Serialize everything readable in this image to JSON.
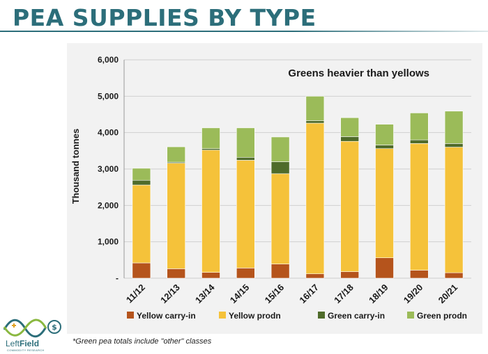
{
  "slide": {
    "title": "PEA SUPPLIES BY TYPE",
    "footnote": "*Green pea totals include \"other\" classes"
  },
  "logo": {
    "text_left": "Left",
    "text_right": "Field",
    "subtitle": "COMMODITY RESEARCH",
    "colors": {
      "teal": "#2c6e7a",
      "green": "#8ab840",
      "gold": "#e0a020"
    }
  },
  "chart_data": {
    "type": "bar",
    "stacked": true,
    "annotation": "Greens heavier than yellows",
    "ylabel": "Thousand tonnes",
    "ylim": [
      0,
      6000
    ],
    "yticks": [
      0,
      1000,
      2000,
      3000,
      4000,
      5000,
      6000
    ],
    "ytick_labels": [
      "-",
      "1,000",
      "2,000",
      "3,000",
      "4,000",
      "5,000",
      "6,000"
    ],
    "categories": [
      "11/12",
      "12/13",
      "13/14",
      "14/15",
      "15/16",
      "16/17",
      "17/18",
      "18/19",
      "19/20",
      "20/21"
    ],
    "series": [
      {
        "name": "Yellow carry-in",
        "color": "#b5541c",
        "values": [
          420,
          260,
          160,
          280,
          390,
          120,
          180,
          560,
          220,
          150
        ]
      },
      {
        "name": "Yellow prodn",
        "color": "#f5c23a",
        "values": [
          2140,
          2900,
          3360,
          2960,
          2480,
          4140,
          3580,
          3000,
          3480,
          3450
        ]
      },
      {
        "name": "Green carry-in",
        "color": "#4f6b2a",
        "values": [
          130,
          30,
          40,
          80,
          330,
          70,
          130,
          100,
          100,
          100
        ]
      },
      {
        "name": "Green prodn",
        "color": "#9bbb59",
        "values": [
          330,
          420,
          570,
          810,
          680,
          670,
          520,
          570,
          740,
          890
        ]
      }
    ],
    "grid": true,
    "legend_position": "bottom"
  }
}
